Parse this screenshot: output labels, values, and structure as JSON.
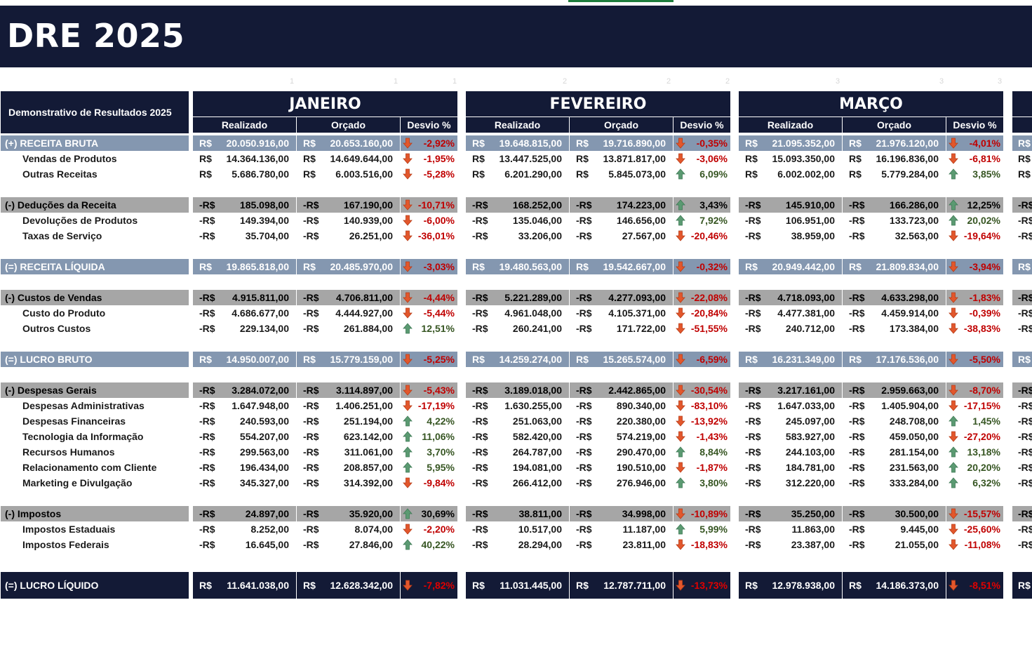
{
  "title": "DRE 2025",
  "table_title": "Demonstrativo de Resultados 2025",
  "months": [
    "JANEIRO",
    "FEVEREIRO",
    "MARÇO"
  ],
  "subheaders": [
    "Realizado",
    "Orçado",
    "Desvio %"
  ],
  "colors": {
    "dark": "#131a36",
    "total_band": "#8497b0",
    "group_band": "#a6a6a6",
    "negative": "#c00000",
    "positive": "#375623"
  },
  "rows": [
    {
      "label": "(+) RECEITA BRUTA",
      "type": "total",
      "values": [
        [
          "R$",
          "20.050.916,00",
          "R$",
          "20.653.160,00",
          "-2,92%",
          "down"
        ],
        [
          "R$",
          "19.648.815,00",
          "R$",
          "19.716.890,00",
          "-0,35%",
          "down"
        ],
        [
          "R$",
          "21.095.352,00",
          "R$",
          "21.976.120,00",
          "-4,01%",
          "down"
        ]
      ]
    },
    {
      "label": "Vendas de Produtos",
      "type": "sub",
      "values": [
        [
          "R$",
          "14.364.136,00",
          "R$",
          "14.649.644,00",
          "-1,95%",
          "down"
        ],
        [
          "R$",
          "13.447.525,00",
          "R$",
          "13.871.817,00",
          "-3,06%",
          "down"
        ],
        [
          "R$",
          "15.093.350,00",
          "R$",
          "16.196.836,00",
          "-6,81%",
          "down"
        ]
      ]
    },
    {
      "label": "Outras Receitas",
      "type": "sub",
      "values": [
        [
          "R$",
          "5.686.780,00",
          "R$",
          "6.003.516,00",
          "-5,28%",
          "down"
        ],
        [
          "R$",
          "6.201.290,00",
          "R$",
          "5.845.073,00",
          "6,09%",
          "up"
        ],
        [
          "R$",
          "6.002.002,00",
          "R$",
          "5.779.284,00",
          "3,85%",
          "up"
        ]
      ]
    },
    {
      "type": "blank"
    },
    {
      "label": "(-) Deduções da Receita",
      "type": "group",
      "values": [
        [
          "-R$",
          "185.098,00",
          "-R$",
          "167.190,00",
          "-10,71%",
          "down"
        ],
        [
          "-R$",
          "168.252,00",
          "-R$",
          "174.223,00",
          "3,43%",
          "up"
        ],
        [
          "-R$",
          "145.910,00",
          "-R$",
          "166.286,00",
          "12,25%",
          "up"
        ]
      ]
    },
    {
      "label": "Devoluções de Produtos",
      "type": "sub",
      "values": [
        [
          "-R$",
          "149.394,00",
          "-R$",
          "140.939,00",
          "-6,00%",
          "down"
        ],
        [
          "-R$",
          "135.046,00",
          "-R$",
          "146.656,00",
          "7,92%",
          "up"
        ],
        [
          "-R$",
          "106.951,00",
          "-R$",
          "133.723,00",
          "20,02%",
          "up"
        ]
      ]
    },
    {
      "label": "Taxas de Serviço",
      "type": "sub",
      "values": [
        [
          "-R$",
          "35.704,00",
          "-R$",
          "26.251,00",
          "-36,01%",
          "down"
        ],
        [
          "-R$",
          "33.206,00",
          "-R$",
          "27.567,00",
          "-20,46%",
          "down"
        ],
        [
          "-R$",
          "38.959,00",
          "-R$",
          "32.563,00",
          "-19,64%",
          "down"
        ]
      ]
    },
    {
      "type": "blank"
    },
    {
      "label": "(=) RECEITA LÍQUIDA",
      "type": "total",
      "values": [
        [
          "R$",
          "19.865.818,00",
          "R$",
          "20.485.970,00",
          "-3,03%",
          "down"
        ],
        [
          "R$",
          "19.480.563,00",
          "R$",
          "19.542.667,00",
          "-0,32%",
          "down"
        ],
        [
          "R$",
          "20.949.442,00",
          "R$",
          "21.809.834,00",
          "-3,94%",
          "down"
        ]
      ]
    },
    {
      "type": "blank"
    },
    {
      "label": "(-) Custos de Vendas",
      "type": "group",
      "values": [
        [
          "-R$",
          "4.915.811,00",
          "-R$",
          "4.706.811,00",
          "-4,44%",
          "down"
        ],
        [
          "-R$",
          "5.221.289,00",
          "-R$",
          "4.277.093,00",
          "-22,08%",
          "down"
        ],
        [
          "-R$",
          "4.718.093,00",
          "-R$",
          "4.633.298,00",
          "-1,83%",
          "down"
        ]
      ]
    },
    {
      "label": "Custo do Produto",
      "type": "sub",
      "values": [
        [
          "-R$",
          "4.686.677,00",
          "-R$",
          "4.444.927,00",
          "-5,44%",
          "down"
        ],
        [
          "-R$",
          "4.961.048,00",
          "-R$",
          "4.105.371,00",
          "-20,84%",
          "down"
        ],
        [
          "-R$",
          "4.477.381,00",
          "-R$",
          "4.459.914,00",
          "-0,39%",
          "down"
        ]
      ]
    },
    {
      "label": "Outros Custos",
      "type": "sub",
      "values": [
        [
          "-R$",
          "229.134,00",
          "-R$",
          "261.884,00",
          "12,51%",
          "up"
        ],
        [
          "-R$",
          "260.241,00",
          "-R$",
          "171.722,00",
          "-51,55%",
          "down"
        ],
        [
          "-R$",
          "240.712,00",
          "-R$",
          "173.384,00",
          "-38,83%",
          "down"
        ]
      ]
    },
    {
      "type": "blank"
    },
    {
      "label": "(=) LUCRO BRUTO",
      "type": "total",
      "values": [
        [
          "R$",
          "14.950.007,00",
          "R$",
          "15.779.159,00",
          "-5,25%",
          "down"
        ],
        [
          "R$",
          "14.259.274,00",
          "R$",
          "15.265.574,00",
          "-6,59%",
          "down"
        ],
        [
          "R$",
          "16.231.349,00",
          "R$",
          "17.176.536,00",
          "-5,50%",
          "down"
        ]
      ]
    },
    {
      "type": "blank"
    },
    {
      "label": "(-) Despesas Gerais",
      "type": "group",
      "values": [
        [
          "-R$",
          "3.284.072,00",
          "-R$",
          "3.114.897,00",
          "-5,43%",
          "down"
        ],
        [
          "-R$",
          "3.189.018,00",
          "-R$",
          "2.442.865,00",
          "-30,54%",
          "down"
        ],
        [
          "-R$",
          "3.217.161,00",
          "-R$",
          "2.959.663,00",
          "-8,70%",
          "down"
        ]
      ]
    },
    {
      "label": "Despesas Administrativas",
      "type": "sub",
      "values": [
        [
          "-R$",
          "1.647.948,00",
          "-R$",
          "1.406.251,00",
          "-17,19%",
          "down"
        ],
        [
          "-R$",
          "1.630.255,00",
          "-R$",
          "890.340,00",
          "-83,10%",
          "down"
        ],
        [
          "-R$",
          "1.647.033,00",
          "-R$",
          "1.405.904,00",
          "-17,15%",
          "down"
        ]
      ]
    },
    {
      "label": "Despesas Financeiras",
      "type": "sub",
      "values": [
        [
          "-R$",
          "240.593,00",
          "-R$",
          "251.194,00",
          "4,22%",
          "up"
        ],
        [
          "-R$",
          "251.063,00",
          "-R$",
          "220.380,00",
          "-13,92%",
          "down"
        ],
        [
          "-R$",
          "245.097,00",
          "-R$",
          "248.708,00",
          "1,45%",
          "up"
        ]
      ]
    },
    {
      "label": "Tecnologia da Informação",
      "type": "sub",
      "values": [
        [
          "-R$",
          "554.207,00",
          "-R$",
          "623.142,00",
          "11,06%",
          "up"
        ],
        [
          "-R$",
          "582.420,00",
          "-R$",
          "574.219,00",
          "-1,43%",
          "down"
        ],
        [
          "-R$",
          "583.927,00",
          "-R$",
          "459.050,00",
          "-27,20%",
          "down"
        ]
      ]
    },
    {
      "label": "Recursos Humanos",
      "type": "sub",
      "values": [
        [
          "-R$",
          "299.563,00",
          "-R$",
          "311.061,00",
          "3,70%",
          "up"
        ],
        [
          "-R$",
          "264.787,00",
          "-R$",
          "290.470,00",
          "8,84%",
          "up"
        ],
        [
          "-R$",
          "244.103,00",
          "-R$",
          "281.154,00",
          "13,18%",
          "up"
        ]
      ]
    },
    {
      "label": "Relacionamento com Cliente",
      "type": "sub",
      "values": [
        [
          "-R$",
          "196.434,00",
          "-R$",
          "208.857,00",
          "5,95%",
          "up"
        ],
        [
          "-R$",
          "194.081,00",
          "-R$",
          "190.510,00",
          "-1,87%",
          "down"
        ],
        [
          "-R$",
          "184.781,00",
          "-R$",
          "231.563,00",
          "20,20%",
          "up"
        ]
      ]
    },
    {
      "label": "Marketing e Divulgação",
      "type": "sub",
      "values": [
        [
          "-R$",
          "345.327,00",
          "-R$",
          "314.392,00",
          "-9,84%",
          "down"
        ],
        [
          "-R$",
          "266.412,00",
          "-R$",
          "276.946,00",
          "3,80%",
          "up"
        ],
        [
          "-R$",
          "312.220,00",
          "-R$",
          "333.284,00",
          "6,32%",
          "up"
        ]
      ]
    },
    {
      "type": "blank"
    },
    {
      "label": "(-) Impostos",
      "type": "group",
      "values": [
        [
          "-R$",
          "24.897,00",
          "-R$",
          "35.920,00",
          "30,69%",
          "up"
        ],
        [
          "-R$",
          "38.811,00",
          "-R$",
          "34.998,00",
          "-10,89%",
          "down"
        ],
        [
          "-R$",
          "35.250,00",
          "-R$",
          "30.500,00",
          "-15,57%",
          "down"
        ]
      ]
    },
    {
      "label": "Impostos Estaduais",
      "type": "sub",
      "values": [
        [
          "-R$",
          "8.252,00",
          "-R$",
          "8.074,00",
          "-2,20%",
          "down"
        ],
        [
          "-R$",
          "10.517,00",
          "-R$",
          "11.187,00",
          "5,99%",
          "up"
        ],
        [
          "-R$",
          "11.863,00",
          "-R$",
          "9.445,00",
          "-25,60%",
          "down"
        ]
      ]
    },
    {
      "label": "Impostos Federais",
      "type": "sub",
      "values": [
        [
          "-R$",
          "16.645,00",
          "-R$",
          "27.846,00",
          "40,22%",
          "up"
        ],
        [
          "-R$",
          "28.294,00",
          "-R$",
          "23.811,00",
          "-18,83%",
          "down"
        ],
        [
          "-R$",
          "23.387,00",
          "-R$",
          "21.055,00",
          "-11,08%",
          "down"
        ]
      ]
    },
    {
      "type": "blank"
    },
    {
      "label": "(=) LUCRO LÍQUIDO",
      "type": "final",
      "values": [
        [
          "R$",
          "11.641.038,00",
          "R$",
          "12.628.342,00",
          "-7,82%",
          "down"
        ],
        [
          "R$",
          "11.031.445,00",
          "R$",
          "12.787.711,00",
          "-13,73%",
          "down"
        ],
        [
          "R$",
          "12.978.938,00",
          "R$",
          "14.186.373,00",
          "-8,51%",
          "down"
        ]
      ]
    }
  ],
  "edge_prefixes": [
    "R$",
    "R$",
    "R$",
    "",
    "-R$",
    "-R$",
    "-R$",
    "",
    "R$",
    "",
    "-R$",
    "-R$",
    "-R$",
    "",
    "R$",
    "",
    "-R$",
    "-R$",
    "-R$",
    "-R$",
    "-R$",
    "-R$",
    "-R$",
    "",
    "-R$",
    "-R$",
    "-R$",
    "",
    "R$"
  ]
}
